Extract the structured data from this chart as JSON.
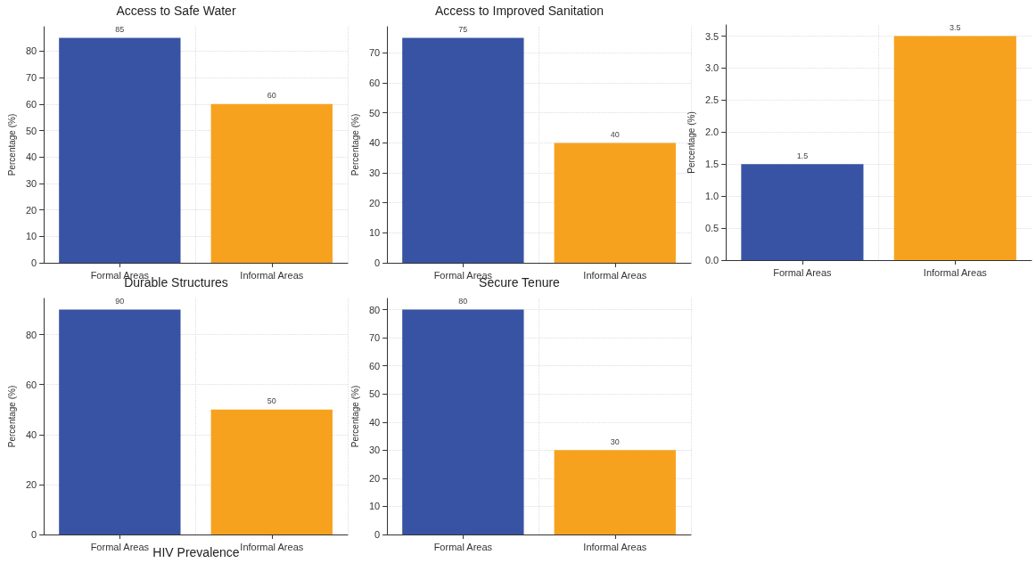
{
  "chart_data": [
    {
      "type": "bar",
      "title": "Access to Safe Water",
      "ylabel": "Percentage (%)",
      "categories": [
        "Formal Areas",
        "Informal Areas"
      ],
      "values": [
        85,
        60
      ],
      "colors": [
        "#3853a4",
        "#f7a21e"
      ],
      "ylim": [
        0,
        89.25
      ],
      "yticks": [
        0,
        10,
        20,
        30,
        40,
        50,
        60,
        70,
        80
      ],
      "grid": true,
      "data_labels": true
    },
    {
      "type": "bar",
      "title": "Access to Improved Sanitation",
      "ylabel": "Percentage (%)",
      "categories": [
        "Formal Areas",
        "Informal Areas"
      ],
      "values": [
        75,
        40
      ],
      "colors": [
        "#3853a4",
        "#f7a21e"
      ],
      "ylim": [
        0,
        78.75
      ],
      "yticks": [
        0,
        10,
        20,
        30,
        40,
        50,
        60,
        70
      ],
      "grid": true,
      "data_labels": true
    },
    {
      "type": "bar",
      "ylabel": "Percentage (%)",
      "categories": [
        "Formal Areas",
        "Informal Areas"
      ],
      "values": [
        1.5,
        3.5
      ],
      "colors": [
        "#3853a4",
        "#f7a21e"
      ],
      "ylim": [
        0,
        3.675
      ],
      "yticks": [
        {
          "value": 0,
          "label": "0.0"
        },
        {
          "value": 0.5,
          "label": "0.5"
        },
        {
          "value": 1,
          "label": "1.0"
        },
        {
          "value": 1.5,
          "label": "1.5"
        },
        {
          "value": 2,
          "label": "2.0"
        },
        {
          "value": 2.5,
          "label": "2.5"
        },
        {
          "value": 3,
          "label": "3.0"
        },
        {
          "value": 3.5,
          "label": "3.5"
        }
      ],
      "grid": true,
      "data_labels": true
    },
    {
      "type": "bar",
      "title": "Durable Structures",
      "ylabel": "Percentage (%)",
      "categories": [
        "Formal Areas",
        "Informal Areas"
      ],
      "values": [
        90,
        50
      ],
      "colors": [
        "#3853a4",
        "#f7a21e"
      ],
      "ylim": [
        0,
        94.5
      ],
      "yticks": [
        0,
        20,
        40,
        60,
        80
      ],
      "grid": true,
      "data_labels": true
    },
    {
      "type": "bar",
      "title": "Secure Tenure",
      "ylabel": "Percentage (%)",
      "categories": [
        "Formal Areas",
        "Informal Areas"
      ],
      "values": [
        80,
        30
      ],
      "colors": [
        "#3853a4",
        "#f7a21e"
      ],
      "ylim": [
        0,
        84
      ],
      "yticks": [
        0,
        10,
        20,
        30,
        40,
        50,
        60,
        70,
        80
      ],
      "grid": true,
      "data_labels": true
    },
    {
      "type": "other",
      "title": "HIV Prevalence"
    }
  ]
}
